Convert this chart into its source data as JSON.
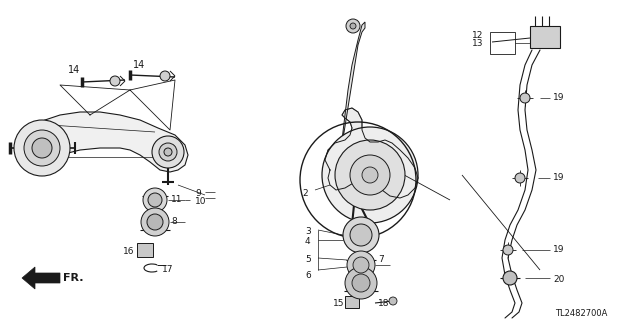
{
  "bg_color": "#ffffff",
  "fig_width": 6.4,
  "fig_height": 3.2,
  "dpi": 100,
  "diagram_code": "TL2482700A",
  "fr_label": "FR."
}
